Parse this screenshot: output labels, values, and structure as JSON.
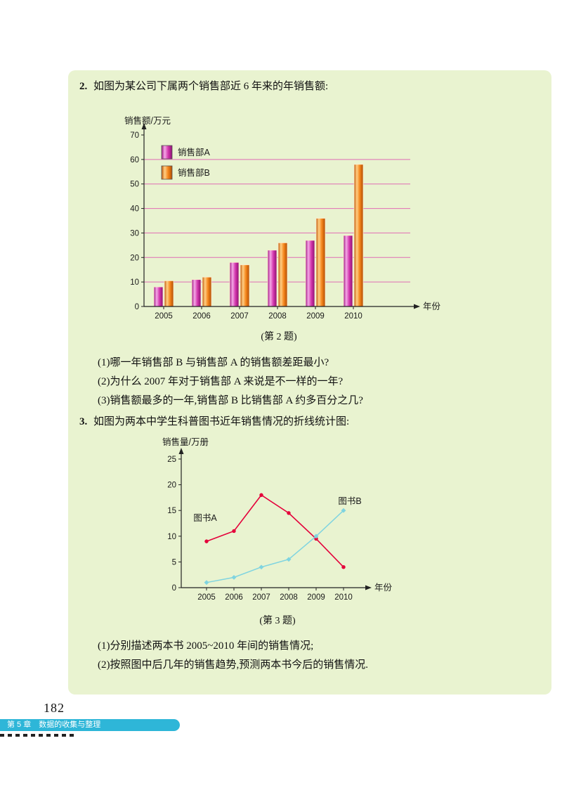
{
  "page": {
    "page_number": "182",
    "footer_chapter": "第 5 章　数据的收集与整理"
  },
  "question2": {
    "number": "2.",
    "prompt": "如图为某公司下属两个销售部近 6 年来的年销售额:",
    "caption": "(第 2 题)",
    "sub_questions": [
      "(1)哪一年销售部 B 与销售部 A 的销售额差距最小?",
      "(2)为什么 2007 年对于销售部 A 来说是不一样的一年?",
      "(3)销售额最多的一年,销售部 B 比销售部 A 约多百分之几?"
    ]
  },
  "question3": {
    "number": "3.",
    "prompt": "如图为两本中学生科普图书近年销售情况的折线统计图:",
    "caption": "(第 3 题)",
    "sub_questions": [
      "(1)分别描述两本书 2005~2010 年间的销售情况;",
      "(2)按照图中后几年的销售趋势,预测两本书今后的销售情况."
    ]
  },
  "chart_data": [
    {
      "type": "bar",
      "title": "",
      "ylabel": "销售额/万元",
      "xlabel": "年份",
      "categories": [
        "2005",
        "2006",
        "2007",
        "2008",
        "2009",
        "2010"
      ],
      "series": [
        {
          "name": "销售部A",
          "color": "#cc2f9e",
          "values": [
            8,
            11,
            18,
            23,
            27,
            29
          ]
        },
        {
          "name": "销售部B",
          "color": "#f08519",
          "values": [
            10.5,
            12,
            17,
            26,
            36,
            58
          ]
        }
      ],
      "ylim": [
        0,
        70
      ],
      "ytick_step": 10,
      "grid": true,
      "grid_color": "#e06cb4",
      "legend_position": "top-left"
    },
    {
      "type": "line",
      "title": "",
      "ylabel": "销售量/万册",
      "xlabel": "年份",
      "x": [
        "2005",
        "2006",
        "2007",
        "2008",
        "2009",
        "2010"
      ],
      "series": [
        {
          "name": "图书A",
          "color": "#e4003a",
          "marker": "dot",
          "label_pos": "left",
          "values": [
            9,
            11,
            18,
            14.5,
            9.5,
            4
          ]
        },
        {
          "name": "图书B",
          "color": "#7fd4e0",
          "marker": "diamond",
          "label_pos": "right",
          "values": [
            1,
            2,
            4,
            5.5,
            10,
            15
          ]
        }
      ],
      "ylim": [
        0,
        25
      ],
      "ytick_step": 5,
      "grid": false,
      "legend_position": "inline-labels"
    }
  ]
}
